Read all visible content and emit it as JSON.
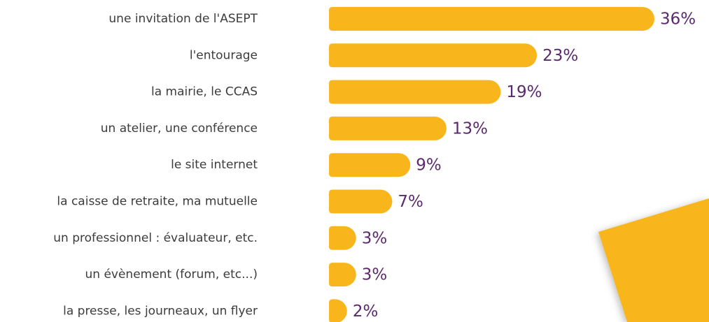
{
  "chart_data": {
    "type": "barh",
    "categories": [
      "une invitation de l'ASEPT",
      "l'entourage",
      "la mairie, le CCAS",
      "un atelier, une conférence",
      "le site internet",
      "la caisse de retraite, ma mutuelle",
      "un professionnel : évaluateur, etc.",
      "un évènement (forum, etc...)",
      "la presse, les journeaux, un flyer"
    ],
    "values": [
      36,
      23,
      19,
      13,
      9,
      7,
      3,
      3,
      2
    ],
    "value_labels": [
      "36%",
      "23%",
      "19%",
      "13%",
      "9%",
      "7%",
      "3%",
      "3%",
      "2%"
    ],
    "color": "#f9b51c",
    "label_color": "#5b2a6e"
  }
}
